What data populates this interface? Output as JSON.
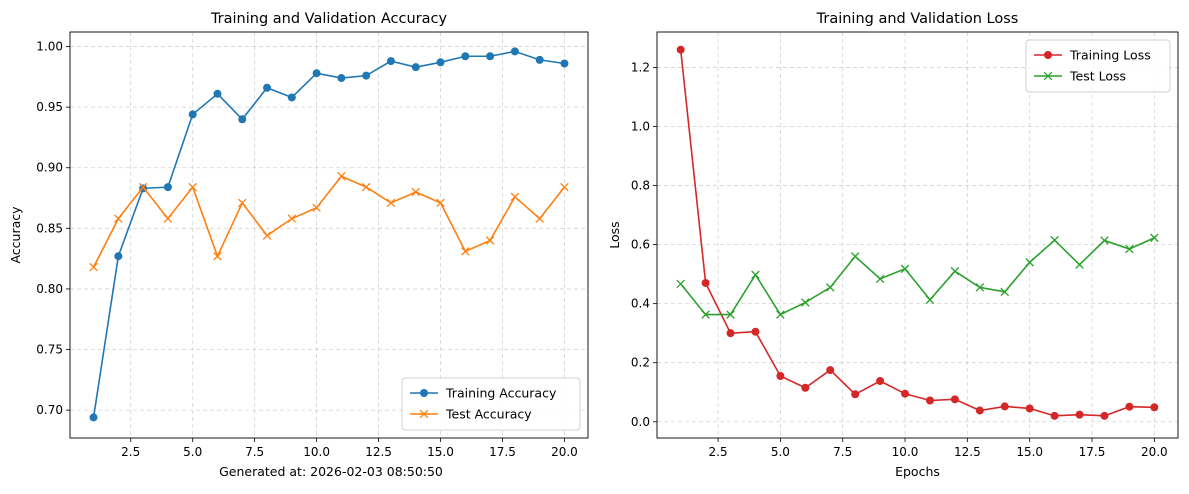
{
  "footer_text": "Generated at: 2026-02-03 08:50:50",
  "chart_data": [
    {
      "type": "line",
      "title": "Training and Validation Accuracy",
      "xlabel": "",
      "ylabel": "Accuracy",
      "xlim": [
        0.05,
        20.95
      ],
      "ylim": [
        0.677,
        1.012
      ],
      "xticks": [
        2.5,
        5.0,
        7.5,
        10.0,
        12.5,
        15.0,
        17.5,
        20.0
      ],
      "xtick_labels": [
        "2.5",
        "5.0",
        "7.5",
        "10.0",
        "12.5",
        "15.0",
        "17.5",
        "20.0"
      ],
      "yticks": [
        0.7,
        0.75,
        0.8,
        0.85,
        0.9,
        0.95,
        1.0
      ],
      "ytick_labels": [
        "0.70",
        "0.75",
        "0.80",
        "0.85",
        "0.90",
        "0.95",
        "1.00"
      ],
      "grid": true,
      "legend_position": "lower-right",
      "x": [
        1,
        2,
        3,
        4,
        5,
        6,
        7,
        8,
        9,
        10,
        11,
        12,
        13,
        14,
        15,
        16,
        17,
        18,
        19,
        20
      ],
      "series": [
        {
          "name": "Training Accuracy",
          "color": "#1f77b4",
          "marker": "circle",
          "values": [
            0.694,
            0.827,
            0.883,
            0.884,
            0.944,
            0.961,
            0.94,
            0.966,
            0.958,
            0.978,
            0.974,
            0.976,
            0.988,
            0.983,
            0.987,
            0.992,
            0.992,
            0.996,
            0.989,
            0.986
          ]
        },
        {
          "name": "Test Accuracy",
          "color": "#ff7f0e",
          "marker": "x",
          "values": [
            0.818,
            0.858,
            0.884,
            0.858,
            0.884,
            0.827,
            0.871,
            0.844,
            0.858,
            0.867,
            0.893,
            0.884,
            0.871,
            0.88,
            0.871,
            0.831,
            0.84,
            0.876,
            0.858,
            0.884
          ]
        }
      ]
    },
    {
      "type": "line",
      "title": "Training and Validation Loss",
      "xlabel": "Epochs",
      "ylabel": "Loss",
      "xlim": [
        0.05,
        20.95
      ],
      "ylim": [
        -0.055,
        1.32
      ],
      "xticks": [
        2.5,
        5.0,
        7.5,
        10.0,
        12.5,
        15.0,
        17.5,
        20.0
      ],
      "xtick_labels": [
        "2.5",
        "5.0",
        "7.5",
        "10.0",
        "12.5",
        "15.0",
        "17.5",
        "20.0"
      ],
      "yticks": [
        0.0,
        0.2,
        0.4,
        0.6,
        0.8,
        1.0,
        1.2
      ],
      "ytick_labels": [
        "0.0",
        "0.2",
        "0.4",
        "0.6",
        "0.8",
        "1.0",
        "1.2"
      ],
      "grid": true,
      "legend_position": "top-right",
      "x": [
        1,
        2,
        3,
        4,
        5,
        6,
        7,
        8,
        9,
        10,
        11,
        12,
        13,
        14,
        15,
        16,
        17,
        18,
        19,
        20
      ],
      "series": [
        {
          "name": "Training Loss",
          "color": "#d62728",
          "marker": "circle",
          "values": [
            1.26,
            0.47,
            0.3,
            0.305,
            0.155,
            0.115,
            0.175,
            0.093,
            0.138,
            0.095,
            0.072,
            0.076,
            0.038,
            0.052,
            0.045,
            0.02,
            0.024,
            0.02,
            0.051,
            0.049
          ]
        },
        {
          "name": "Test Loss",
          "color": "#2ca02c",
          "marker": "x",
          "values": [
            0.467,
            0.363,
            0.363,
            0.498,
            0.363,
            0.404,
            0.455,
            0.56,
            0.484,
            0.518,
            0.413,
            0.51,
            0.455,
            0.44,
            0.54,
            0.615,
            0.532,
            0.614,
            0.585,
            0.623
          ]
        }
      ]
    }
  ]
}
